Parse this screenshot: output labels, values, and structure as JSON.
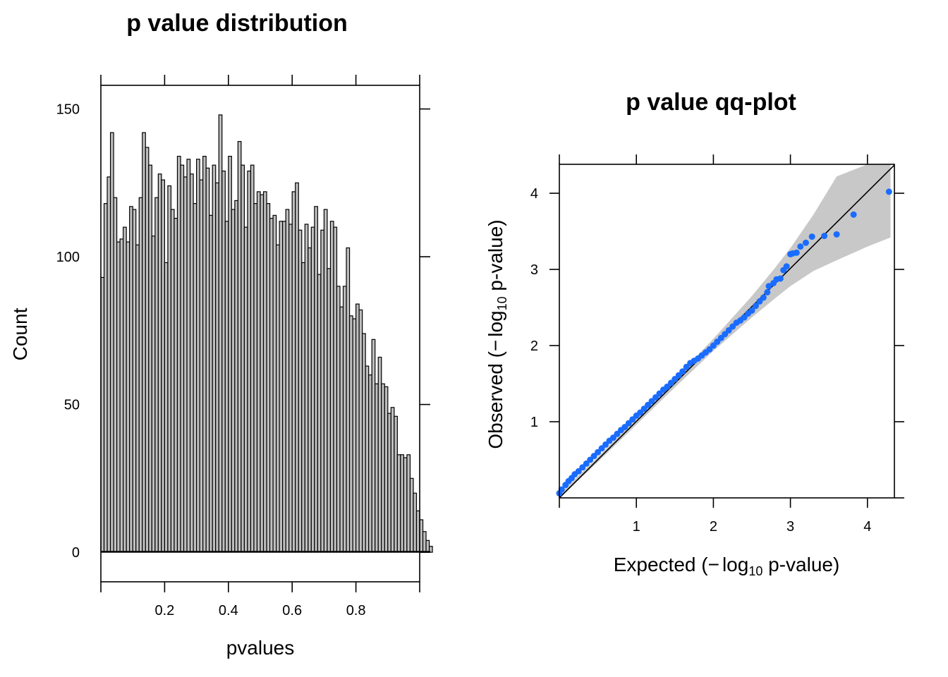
{
  "chart_data": [
    {
      "type": "bar",
      "title": "p value distribution",
      "xlabel": "pvalues",
      "ylabel": "Count",
      "xlim": [
        0,
        1
      ],
      "ylim": [
        -10,
        158
      ],
      "xticks": [
        0.2,
        0.4,
        0.6,
        0.8
      ],
      "xtick_labels": [
        "0.2",
        "0.4",
        "0.6",
        "0.8"
      ],
      "yticks": [
        0,
        50,
        100,
        150
      ],
      "ytick_labels": [
        "0",
        "50",
        "100",
        "150"
      ],
      "bin_width": 0.01,
      "bin_start": 0,
      "bar_color": "#bfbfbf",
      "values": [
        93,
        118,
        127,
        142,
        120,
        105,
        106,
        110,
        105,
        117,
        116,
        104,
        120,
        142,
        137,
        131,
        107,
        120,
        128,
        126,
        98,
        124,
        116,
        113,
        134,
        131,
        127,
        133,
        128,
        118,
        133,
        126,
        134,
        130,
        114,
        131,
        125,
        148,
        129,
        112,
        134,
        116,
        119,
        139,
        131,
        110,
        129,
        131,
        118,
        122,
        121,
        122,
        118,
        113,
        114,
        104,
        112,
        112,
        116,
        111,
        122,
        125,
        109,
        98,
        111,
        103,
        110,
        117,
        94,
        109,
        116,
        96,
        112,
        110,
        90,
        83,
        90,
        103,
        80,
        79,
        84,
        82,
        74,
        63,
        60,
        72,
        57,
        66,
        57,
        56,
        47,
        49,
        46,
        33,
        33,
        32,
        33,
        25,
        20,
        14,
        11,
        7,
        4,
        2
      ]
    },
    {
      "type": "scatter",
      "title": "p value qq-plot",
      "xlabel_parts": [
        "Expected (",
        "−",
        "log",
        "10",
        " p-value)"
      ],
      "ylabel_parts": [
        "Observed (",
        "−",
        "log",
        "10",
        " p-value)"
      ],
      "xlim": [
        0,
        4.35
      ],
      "ylim": [
        0,
        4.38
      ],
      "xticks": [
        1,
        2,
        3,
        4
      ],
      "xtick_labels": [
        "1",
        "2",
        "3",
        "4"
      ],
      "yticks": [
        1,
        2,
        3,
        4
      ],
      "ytick_labels": [
        "1",
        "2",
        "3",
        "4"
      ],
      "point_color": "#1a6cff",
      "band_color": "#c8c8c8",
      "reference_line": [
        [
          0,
          0
        ],
        [
          4.35,
          4.37
        ]
      ],
      "confidence_band": {
        "x": [
          0.0,
          0.5,
          1.0,
          1.5,
          2.0,
          2.5,
          2.8,
          3.0,
          3.3,
          3.6,
          4.0,
          4.3
        ],
        "upper": [
          0.05,
          0.54,
          1.05,
          1.56,
          2.09,
          2.65,
          3.02,
          3.28,
          3.72,
          4.22,
          4.38,
          4.38
        ],
        "lower": [
          0.0,
          0.47,
          0.96,
          1.45,
          1.93,
          2.37,
          2.62,
          2.78,
          2.98,
          3.12,
          3.3,
          3.42
        ]
      },
      "points": [
        [
          0.0,
          0.06
        ],
        [
          0.03,
          0.11
        ],
        [
          0.08,
          0.17
        ],
        [
          0.12,
          0.22
        ],
        [
          0.16,
          0.26
        ],
        [
          0.2,
          0.31
        ],
        [
          0.25,
          0.35
        ],
        [
          0.3,
          0.4
        ],
        [
          0.35,
          0.45
        ],
        [
          0.4,
          0.5
        ],
        [
          0.45,
          0.55
        ],
        [
          0.5,
          0.6
        ],
        [
          0.55,
          0.65
        ],
        [
          0.6,
          0.7
        ],
        [
          0.65,
          0.75
        ],
        [
          0.7,
          0.79
        ],
        [
          0.75,
          0.84
        ],
        [
          0.8,
          0.89
        ],
        [
          0.85,
          0.93
        ],
        [
          0.9,
          0.98
        ],
        [
          0.95,
          1.03
        ],
        [
          1.0,
          1.08
        ],
        [
          1.05,
          1.12
        ],
        [
          1.1,
          1.17
        ],
        [
          1.15,
          1.22
        ],
        [
          1.2,
          1.27
        ],
        [
          1.25,
          1.32
        ],
        [
          1.3,
          1.37
        ],
        [
          1.35,
          1.42
        ],
        [
          1.4,
          1.46
        ],
        [
          1.45,
          1.51
        ],
        [
          1.5,
          1.56
        ],
        [
          1.55,
          1.61
        ],
        [
          1.6,
          1.66
        ],
        [
          1.65,
          1.72
        ],
        [
          1.7,
          1.77
        ],
        [
          1.75,
          1.8
        ],
        [
          1.8,
          1.83
        ],
        [
          1.85,
          1.87
        ],
        [
          1.9,
          1.91
        ],
        [
          1.95,
          1.95
        ],
        [
          2.0,
          2.0
        ],
        [
          2.05,
          2.05
        ],
        [
          2.1,
          2.1
        ],
        [
          2.15,
          2.15
        ],
        [
          2.2,
          2.2
        ],
        [
          2.25,
          2.25
        ],
        [
          2.3,
          2.3
        ],
        [
          2.35,
          2.33
        ],
        [
          2.4,
          2.37
        ],
        [
          2.45,
          2.42
        ],
        [
          2.5,
          2.46
        ],
        [
          2.55,
          2.52
        ],
        [
          2.6,
          2.58
        ],
        [
          2.65,
          2.63
        ],
        [
          2.7,
          2.7
        ],
        [
          2.72,
          2.78
        ],
        [
          2.78,
          2.82
        ],
        [
          2.82,
          2.87
        ],
        [
          2.87,
          2.88
        ],
        [
          2.91,
          2.99
        ],
        [
          2.95,
          3.04
        ],
        [
          3.0,
          3.2
        ],
        [
          3.03,
          3.21
        ],
        [
          3.08,
          3.22
        ],
        [
          3.13,
          3.3
        ],
        [
          3.2,
          3.35
        ],
        [
          3.28,
          3.43
        ],
        [
          3.44,
          3.44
        ],
        [
          3.6,
          3.46
        ],
        [
          3.82,
          3.72
        ],
        [
          4.28,
          4.02
        ]
      ]
    }
  ]
}
